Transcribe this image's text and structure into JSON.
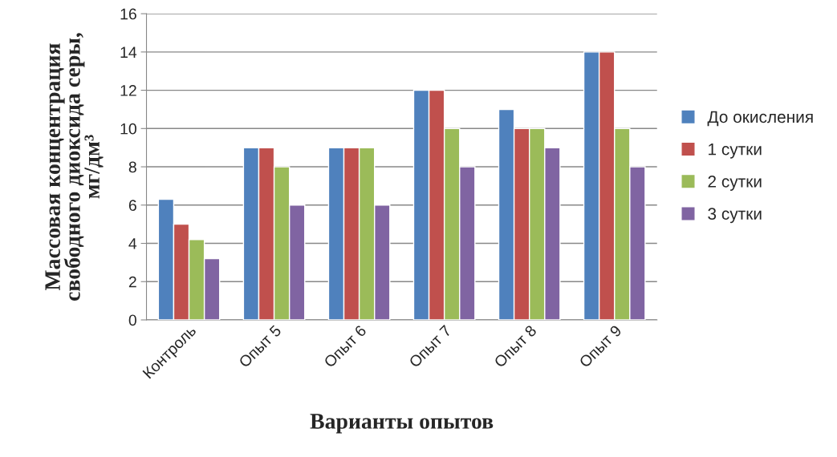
{
  "chart_data": {
    "type": "bar",
    "ylabel": "Массовая концентрация\nсвободного диоксида серы,\nмг/дм³",
    "xlabel": "Варианты опытов",
    "categories": [
      "Контроль",
      "Опыт 5",
      "Опыт 6",
      "Опыт 7",
      "Опыт 8",
      "Опыт 9"
    ],
    "series": [
      {
        "name": "До окисления",
        "color": "#4f81bd",
        "values": [
          6.3,
          9,
          9,
          12,
          11,
          14
        ]
      },
      {
        "name": "1 сутки",
        "color": "#c0504d",
        "values": [
          5.0,
          9,
          9,
          12,
          10,
          14
        ]
      },
      {
        "name": "2 сутки",
        "color": "#9bbb59",
        "values": [
          4.2,
          8,
          9,
          10,
          10,
          10
        ]
      },
      {
        "name": "3 сутки",
        "color": "#8064a2",
        "values": [
          3.2,
          6,
          6,
          8,
          9,
          8
        ]
      }
    ],
    "ylim": [
      0,
      16
    ],
    "yticks": [
      0,
      2,
      4,
      6,
      8,
      10,
      12,
      14,
      16
    ],
    "grid": "y",
    "legend": "right"
  }
}
